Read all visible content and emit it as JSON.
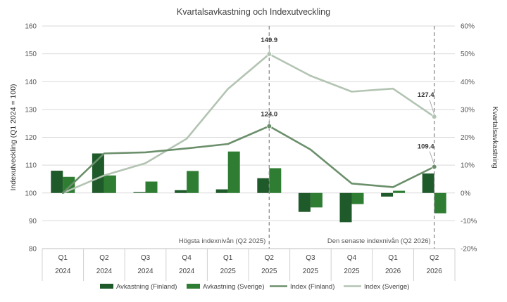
{
  "chart_data": {
    "type": "bar",
    "title": "Kvartalsavkastning och Indexutveckling",
    "ylabel_left": "Indexutveckling (Q1 2024 = 100)",
    "ylabel_right": "Kvartalsavkastning",
    "ylim_left": [
      80,
      160
    ],
    "yticks_left": [
      "80",
      "90",
      "100",
      "110",
      "120",
      "130",
      "140",
      "150",
      "160"
    ],
    "ylim_right": [
      -20,
      60
    ],
    "yticks_right": [
      "-20%",
      "-10%",
      "0%",
      "10%",
      "20%",
      "30%",
      "40%",
      "50%",
      "60%"
    ],
    "categories": [
      {
        "quarter": "Q1",
        "year": "2024"
      },
      {
        "quarter": "Q2",
        "year": "2024"
      },
      {
        "quarter": "Q3",
        "year": "2024"
      },
      {
        "quarter": "Q4",
        "year": "2024"
      },
      {
        "quarter": "Q1",
        "year": "2025"
      },
      {
        "quarter": "Q2",
        "year": "2025"
      },
      {
        "quarter": "Q3",
        "year": "2025"
      },
      {
        "quarter": "Q4",
        "year": "2025"
      },
      {
        "quarter": "Q1",
        "year": "2026"
      },
      {
        "quarter": "Q2",
        "year": "2026"
      }
    ],
    "bar_series": [
      {
        "name": "Avkastning (Finland)",
        "color": "#1f5a2a",
        "axis": "right",
        "values": [
          8,
          14.2,
          0.3,
          1,
          1.3,
          5.3,
          -6.8,
          -10.5,
          -1.3,
          7
        ]
      },
      {
        "name": "Avkastning (Sverige)",
        "color": "#2e7d32",
        "axis": "right",
        "values": [
          5.8,
          6.3,
          4.1,
          7.9,
          14.9,
          8.9,
          -5.2,
          -4,
          0.8,
          -7.3
        ]
      }
    ],
    "line_series": [
      {
        "name": "Index (Finland)",
        "color": "#6b8f6b",
        "axis": "left",
        "values": [
          100,
          114.2,
          114.6,
          116,
          117.6,
          124,
          115.6,
          103.4,
          102.1,
          109.4
        ]
      },
      {
        "name": "Index (Sverige)",
        "color": "#b3c4b3",
        "axis": "left",
        "values": [
          100,
          106.3,
          110.7,
          119.5,
          137.4,
          149.9,
          142.1,
          136.4,
          137.5,
          127.4
        ]
      }
    ],
    "data_labels": [
      {
        "series": "Index (Sverige)",
        "index": 5,
        "text": "149.9"
      },
      {
        "series": "Index (Finland)",
        "index": 5,
        "text": "124.0"
      },
      {
        "series": "Index (Sverige)",
        "index": 9,
        "text": "127.4"
      },
      {
        "series": "Index (Finland)",
        "index": 9,
        "text": "109.4"
      }
    ],
    "reference_lines": [
      {
        "index": 5,
        "label": "Högsta indexnivån (Q2 2025)"
      },
      {
        "index": 9,
        "label": "Den senaste indexnivån (Q2 2026)"
      }
    ],
    "grid": true,
    "legend_position": "bottom"
  }
}
